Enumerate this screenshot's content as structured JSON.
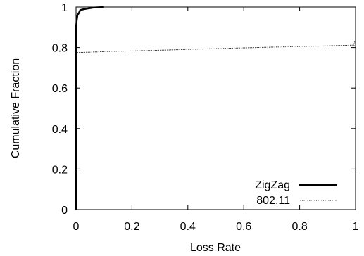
{
  "chart_data": {
    "type": "line",
    "title": "",
    "xlabel": "Loss Rate",
    "ylabel": "Cumulative Fraction",
    "xlim": [
      0,
      1
    ],
    "ylim": [
      0,
      1
    ],
    "x_ticks": [
      "0",
      "0.2",
      "0.4",
      "0.6",
      "0.8",
      "1"
    ],
    "y_ticks": [
      "0",
      "0.2",
      "0.4",
      "0.6",
      "0.8",
      "1"
    ],
    "legend_position": "bottom-right",
    "grid": false,
    "series": [
      {
        "name": "ZigZag",
        "style": "solid-thick",
        "color": "#000000",
        "points": [
          [
            0,
            0
          ],
          [
            0,
            0.9
          ],
          [
            0.002,
            0.93
          ],
          [
            0.005,
            0.96
          ],
          [
            0.01,
            0.97
          ],
          [
            0.015,
            0.985
          ],
          [
            0.03,
            0.99
          ],
          [
            0.06,
            0.997
          ],
          [
            0.1,
            1.0
          ]
        ]
      },
      {
        "name": "802.11",
        "style": "dotted",
        "color": "#000000",
        "points": [
          [
            0,
            0
          ],
          [
            0,
            0.775
          ],
          [
            0.1,
            0.78
          ],
          [
            0.3,
            0.787
          ],
          [
            0.5,
            0.795
          ],
          [
            0.7,
            0.802
          ],
          [
            0.9,
            0.808
          ],
          [
            0.995,
            0.812
          ],
          [
            0.995,
            0.825
          ],
          [
            1.0,
            0.83
          ],
          [
            1.0,
            1.0
          ]
        ]
      }
    ]
  }
}
